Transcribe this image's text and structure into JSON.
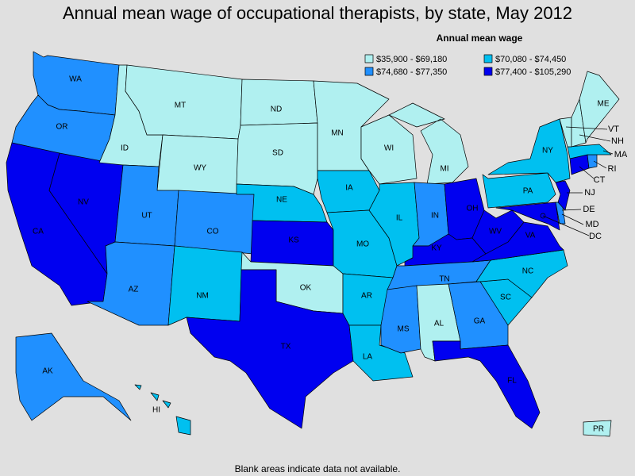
{
  "title": "Annual mean wage of occupational therapists, by state, May 2012",
  "legend": {
    "title": "Annual mean wage",
    "classes": [
      {
        "label": "$35,900 - $69,180",
        "color": "#b0f0f0"
      },
      {
        "label": "$70,080 - $74,450",
        "color": "#00c0f0"
      },
      {
        "label": "$74,680 - $77,350",
        "color": "#2090ff"
      },
      {
        "label": "$77,400 - $105,290",
        "color": "#0000f0"
      }
    ]
  },
  "states": [
    {
      "abbr": "WA",
      "color": "#2090ff"
    },
    {
      "abbr": "OR",
      "color": "#2090ff"
    },
    {
      "abbr": "CA",
      "color": "#0000f0"
    },
    {
      "abbr": "NV",
      "color": "#0000f0"
    },
    {
      "abbr": "ID",
      "color": "#b0f0f0"
    },
    {
      "abbr": "MT",
      "color": "#b0f0f0"
    },
    {
      "abbr": "WY",
      "color": "#b0f0f0"
    },
    {
      "abbr": "UT",
      "color": "#2090ff"
    },
    {
      "abbr": "AZ",
      "color": "#2090ff"
    },
    {
      "abbr": "CO",
      "color": "#2090ff"
    },
    {
      "abbr": "NM",
      "color": "#00c0f0"
    },
    {
      "abbr": "ND",
      "color": "#b0f0f0"
    },
    {
      "abbr": "SD",
      "color": "#b0f0f0"
    },
    {
      "abbr": "NE",
      "color": "#00c0f0"
    },
    {
      "abbr": "KS",
      "color": "#0000f0"
    },
    {
      "abbr": "OK",
      "color": "#b0f0f0"
    },
    {
      "abbr": "TX",
      "color": "#0000f0"
    },
    {
      "abbr": "MN",
      "color": "#b0f0f0"
    },
    {
      "abbr": "IA",
      "color": "#00c0f0"
    },
    {
      "abbr": "MO",
      "color": "#00c0f0"
    },
    {
      "abbr": "AR",
      "color": "#00c0f0"
    },
    {
      "abbr": "LA",
      "color": "#00c0f0"
    },
    {
      "abbr": "WI",
      "color": "#b0f0f0"
    },
    {
      "abbr": "IL",
      "color": "#00c0f0"
    },
    {
      "abbr": "MI",
      "color": "#b0f0f0"
    },
    {
      "abbr": "IN",
      "color": "#2090ff"
    },
    {
      "abbr": "OH",
      "color": "#0000f0"
    },
    {
      "abbr": "KY",
      "color": "#0000f0"
    },
    {
      "abbr": "TN",
      "color": "#2090ff"
    },
    {
      "abbr": "MS",
      "color": "#2090ff"
    },
    {
      "abbr": "AL",
      "color": "#b0f0f0"
    },
    {
      "abbr": "GA",
      "color": "#2090ff"
    },
    {
      "abbr": "FL",
      "color": "#0000f0"
    },
    {
      "abbr": "SC",
      "color": "#00c0f0"
    },
    {
      "abbr": "NC",
      "color": "#00c0f0"
    },
    {
      "abbr": "VA",
      "color": "#0000f0"
    },
    {
      "abbr": "WV",
      "color": "#0000f0"
    },
    {
      "abbr": "PA",
      "color": "#00c0f0"
    },
    {
      "abbr": "NY",
      "color": "#00c0f0"
    },
    {
      "abbr": "MD",
      "color": "#0000f0"
    },
    {
      "abbr": "DE",
      "color": "#2090ff"
    },
    {
      "abbr": "NJ",
      "color": "#0000f0"
    },
    {
      "abbr": "CT",
      "color": "#0000f0"
    },
    {
      "abbr": "RI",
      "color": "#2090ff"
    },
    {
      "abbr": "MA",
      "color": "#00c0f0"
    },
    {
      "abbr": "VT",
      "color": "#b0f0f0"
    },
    {
      "abbr": "NH",
      "color": "#b0f0f0"
    },
    {
      "abbr": "ME",
      "color": "#b0f0f0"
    },
    {
      "abbr": "AK",
      "color": "#2090ff"
    },
    {
      "abbr": "HI",
      "color": "#00c0f0"
    },
    {
      "abbr": "PR",
      "color": "#b0f0f0"
    },
    {
      "abbr": "DC",
      "color": "#0000f0"
    }
  ],
  "note": "Blank areas indicate data not available."
}
